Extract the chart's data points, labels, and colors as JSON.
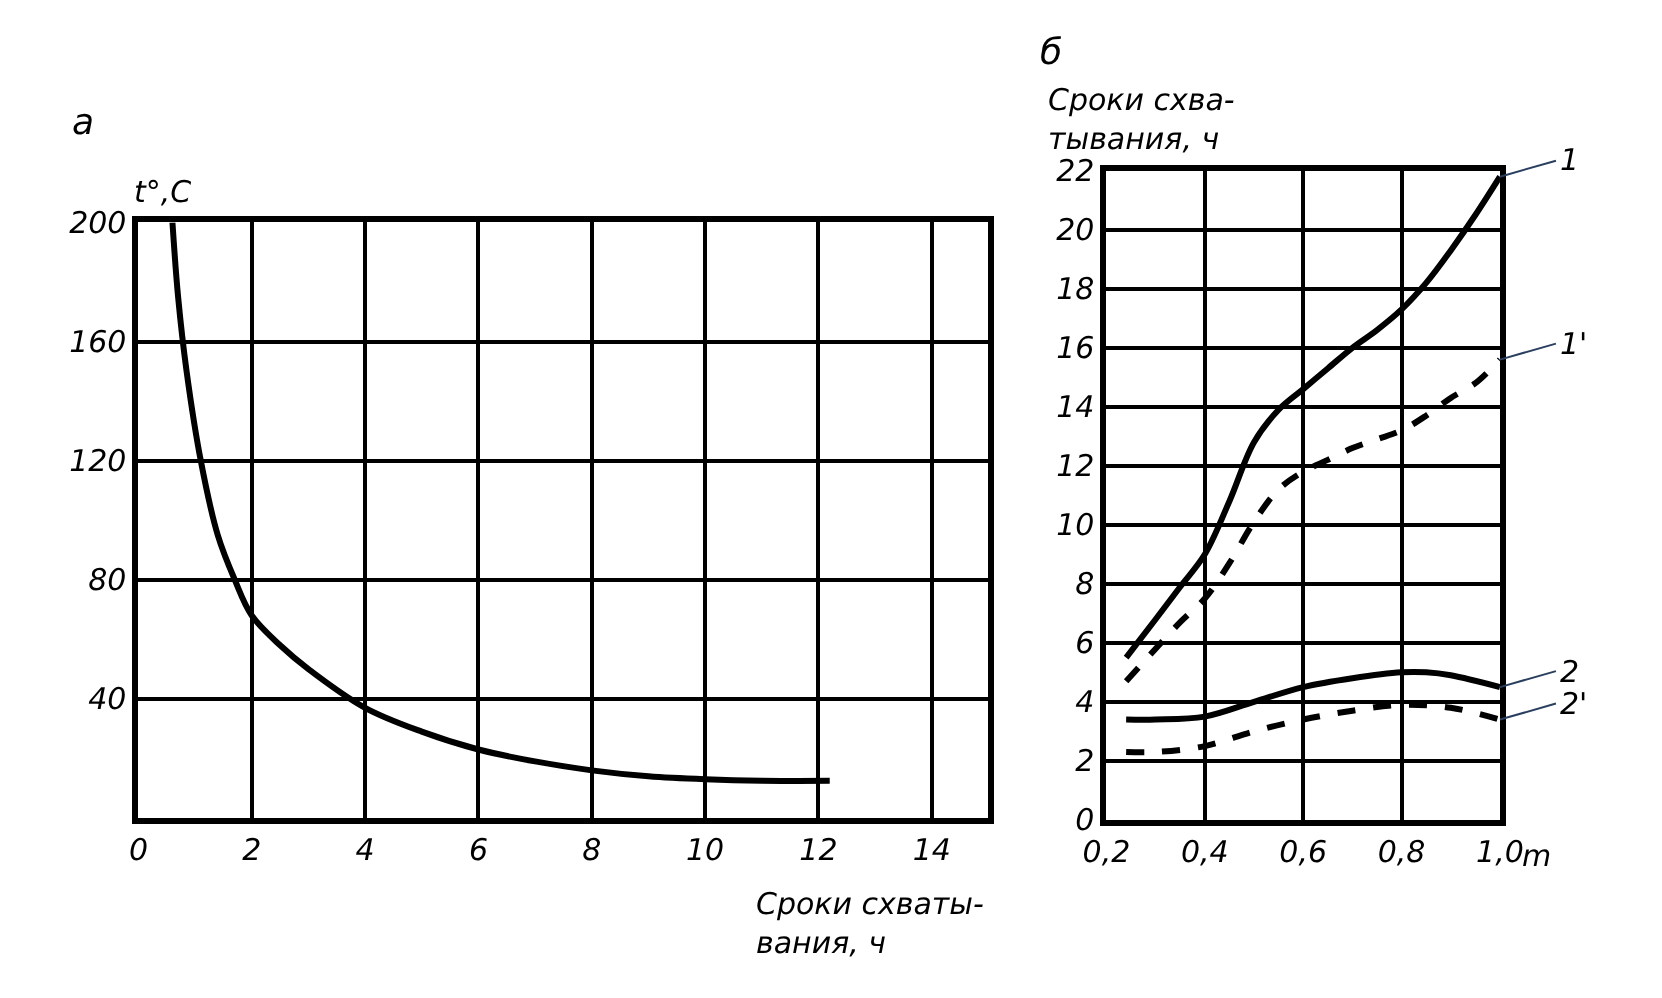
{
  "chart_data": [
    {
      "type": "line",
      "title": "a",
      "ylabel": "t°,C",
      "xlabel": "Сроки схваты-\nвания, ч",
      "xlim": [
        0,
        15
      ],
      "xticks": [
        0,
        2,
        4,
        6,
        8,
        10,
        12,
        14
      ],
      "ylim": [
        0,
        200
      ],
      "yticks": [
        40,
        80,
        120,
        160,
        200
      ],
      "grid": true,
      "series": [
        {
          "color": "#000000",
          "line_style": "solid",
          "x": [
            0.6,
            0.7,
            0.85,
            1.1,
            1.4,
            1.7,
            2,
            2.5,
            3,
            4,
            5,
            6,
            7,
            8,
            9,
            10,
            11,
            12.2
          ],
          "values": [
            200,
            175,
            150,
            120,
            95,
            80,
            68,
            58,
            50,
            37,
            29,
            23,
            19,
            16,
            14,
            13,
            12.5,
            12.5
          ]
        }
      ]
    },
    {
      "type": "line",
      "title": "б",
      "ylabel": "Сроки схва-\nтывания, ч",
      "xlabel": "m",
      "xlim": [
        0.2,
        1.0
      ],
      "xticks": [
        {
          "value": 0.2,
          "label": "0,2"
        },
        {
          "value": 0.4,
          "label": "0,4"
        },
        {
          "value": 0.6,
          "label": "0,6"
        },
        {
          "value": 0.8,
          "label": "0,8"
        },
        {
          "value": 1.0,
          "label": "1,0"
        }
      ],
      "ylim": [
        0,
        22
      ],
      "yticks": [
        0,
        2,
        4,
        6,
        8,
        10,
        12,
        14,
        16,
        18,
        20,
        22
      ],
      "grid": true,
      "series": [
        {
          "name": "1",
          "color": "#000000",
          "line_style": "solid",
          "x": [
            0.24,
            0.3,
            0.35,
            0.4,
            0.45,
            0.5,
            0.55,
            0.6,
            0.65,
            0.7,
            0.75,
            0.8,
            0.85,
            0.9,
            0.95,
            1.0
          ],
          "values": [
            5.5,
            6.8,
            7.9,
            9,
            10.8,
            12.8,
            13.9,
            14.6,
            15.3,
            16,
            16.6,
            17.3,
            18.2,
            19.3,
            20.5,
            21.8
          ]
        },
        {
          "name": "1'",
          "color": "#000000",
          "line_style": "dashed",
          "x": [
            0.24,
            0.3,
            0.35,
            0.4,
            0.45,
            0.5,
            0.55,
            0.6,
            0.65,
            0.7,
            0.75,
            0.8,
            0.85,
            0.9,
            0.95,
            1.0
          ],
          "values": [
            4.7,
            5.8,
            6.7,
            7.5,
            8.7,
            10.1,
            11.2,
            11.8,
            12.2,
            12.6,
            12.9,
            13.2,
            13.7,
            14.3,
            14.8,
            15.6
          ]
        },
        {
          "name": "2",
          "color": "#000000",
          "line_style": "solid",
          "x": [
            0.24,
            0.3,
            0.4,
            0.5,
            0.6,
            0.7,
            0.8,
            0.85,
            0.9,
            1.0
          ],
          "values": [
            3.4,
            3.4,
            3.5,
            4.0,
            4.5,
            4.8,
            5.0,
            5.0,
            4.9,
            4.5
          ]
        },
        {
          "name": "2'",
          "color": "#000000",
          "line_style": "dashed",
          "x": [
            0.24,
            0.3,
            0.4,
            0.5,
            0.6,
            0.7,
            0.8,
            0.9,
            1.0
          ],
          "values": [
            2.3,
            2.3,
            2.5,
            3.0,
            3.4,
            3.7,
            3.9,
            3.8,
            3.4
          ]
        }
      ]
    }
  ]
}
